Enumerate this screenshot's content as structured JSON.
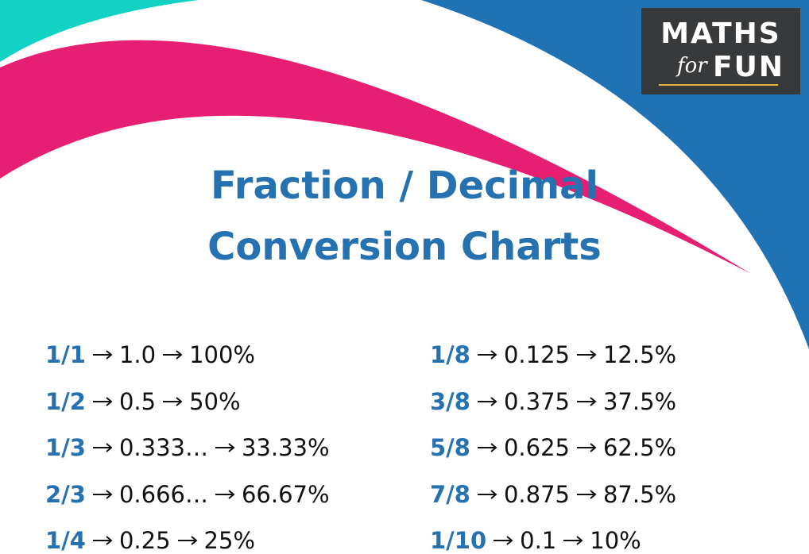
{
  "logo": {
    "line1": "MATHS",
    "for": "for",
    "line2": "FUN"
  },
  "title": {
    "line1": "Fraction / Decimal",
    "line2": "Conversion Charts"
  },
  "columns": [
    {
      "rows": [
        {
          "fraction": "1/1",
          "decimal": "1.0",
          "percent": "100%"
        },
        {
          "fraction": "1/2",
          "decimal": "0.5",
          "percent": "50%"
        },
        {
          "fraction": "1/3",
          "decimal": "0.333…",
          "percent": "33.33%"
        },
        {
          "fraction": "2/3",
          "decimal": "0.666…",
          "percent": "66.67%"
        },
        {
          "fraction": "1/4",
          "decimal": "0.25",
          "percent": "25%"
        }
      ]
    },
    {
      "rows": [
        {
          "fraction": "1/8",
          "decimal": "0.125",
          "percent": "12.5%"
        },
        {
          "fraction": "3/8",
          "decimal": "0.375",
          "percent": "37.5%"
        },
        {
          "fraction": "5/8",
          "decimal": "0.625",
          "percent": "62.5%"
        },
        {
          "fraction": "7/8",
          "decimal": "0.875",
          "percent": "87.5%"
        },
        {
          "fraction": "1/10",
          "decimal": "0.1",
          "percent": "10%"
        }
      ]
    }
  ]
}
